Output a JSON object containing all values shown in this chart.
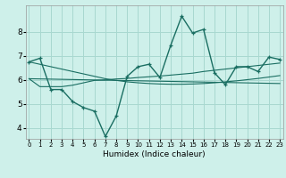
{
  "title": "",
  "xlabel": "Humidex (Indice chaleur)",
  "background_color": "#cef0ea",
  "grid_color": "#a8d8d0",
  "line_color": "#1a6e62",
  "x_ticks": [
    0,
    1,
    2,
    3,
    4,
    5,
    6,
    7,
    8,
    9,
    10,
    11,
    12,
    13,
    14,
    15,
    16,
    17,
    18,
    19,
    20,
    21,
    22,
    23
  ],
  "y_ticks": [
    4,
    5,
    6,
    7,
    8
  ],
  "xlim": [
    -0.3,
    23.3
  ],
  "ylim": [
    3.55,
    9.1
  ],
  "line1_x": [
    0,
    1,
    2,
    3,
    4,
    5,
    6,
    7,
    8,
    9,
    10,
    11,
    12,
    13,
    14,
    15,
    16,
    17,
    18,
    19,
    20,
    21,
    22,
    23
  ],
  "line1_y": [
    6.75,
    6.9,
    5.6,
    5.6,
    5.1,
    4.85,
    4.7,
    3.65,
    4.5,
    6.15,
    6.55,
    6.65,
    6.1,
    7.45,
    8.65,
    7.95,
    8.1,
    6.3,
    5.8,
    6.55,
    6.55,
    6.35,
    6.95,
    6.85
  ],
  "line2_x": [
    0,
    1,
    2,
    3,
    4,
    5,
    6,
    7,
    8,
    9,
    10,
    11,
    12,
    13,
    14,
    15,
    16,
    17,
    18,
    19,
    20,
    21,
    22,
    23
  ],
  "line2_y": [
    6.75,
    6.65,
    6.55,
    6.45,
    6.35,
    6.25,
    6.15,
    6.05,
    5.98,
    5.92,
    5.88,
    5.85,
    5.83,
    5.82,
    5.82,
    5.83,
    5.85,
    5.88,
    5.92,
    5.96,
    6.01,
    6.06,
    6.12,
    6.18
  ],
  "line3_x": [
    0,
    1,
    2,
    3,
    4,
    5,
    6,
    7,
    8,
    9,
    10,
    11,
    12,
    13,
    14,
    15,
    16,
    17,
    18,
    19,
    20,
    21,
    22,
    23
  ],
  "line3_y": [
    6.05,
    5.72,
    5.72,
    5.72,
    5.78,
    5.88,
    5.98,
    6.0,
    6.04,
    6.06,
    6.1,
    6.13,
    6.16,
    6.2,
    6.24,
    6.28,
    6.35,
    6.4,
    6.45,
    6.5,
    6.55,
    6.6,
    6.65,
    6.7
  ],
  "line4_x": [
    0,
    23
  ],
  "line4_y": [
    6.05,
    5.85
  ]
}
